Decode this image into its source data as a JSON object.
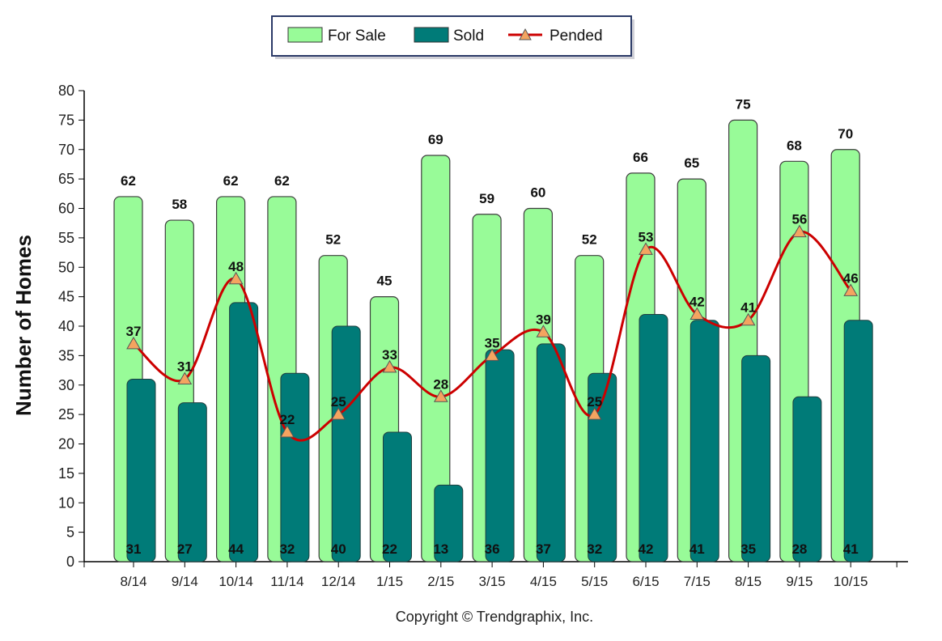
{
  "chart_data": {
    "type": "bar",
    "categories": [
      "8/14",
      "9/14",
      "10/14",
      "11/14",
      "12/14",
      "1/15",
      "2/15",
      "3/15",
      "4/15",
      "5/15",
      "6/15",
      "7/15",
      "8/15",
      "9/15",
      "10/15"
    ],
    "series": [
      {
        "name": "For Sale",
        "type": "bar",
        "color": "#98FB98",
        "values": [
          62,
          58,
          62,
          62,
          52,
          45,
          69,
          59,
          60,
          52,
          66,
          65,
          75,
          68,
          70
        ]
      },
      {
        "name": "Sold",
        "type": "bar",
        "color": "#007B78",
        "values": [
          31,
          27,
          44,
          32,
          40,
          22,
          13,
          36,
          37,
          32,
          42,
          41,
          35,
          28,
          41
        ]
      },
      {
        "name": "Pended",
        "type": "line",
        "color": "#CC0000",
        "marker_color": "#F4A460",
        "values": [
          37,
          31,
          48,
          22,
          25,
          33,
          28,
          35,
          39,
          25,
          53,
          42,
          41,
          56,
          46
        ]
      }
    ],
    "ylabel": "Number of Homes",
    "xlabel": "",
    "ylim": [
      0,
      80
    ],
    "yticks": [
      0,
      5,
      10,
      15,
      20,
      25,
      30,
      35,
      40,
      45,
      50,
      55,
      60,
      65,
      70,
      75,
      80
    ],
    "grid": false,
    "legend_position": "top-center"
  },
  "copyright": "Copyright © Trendgraphix, Inc."
}
